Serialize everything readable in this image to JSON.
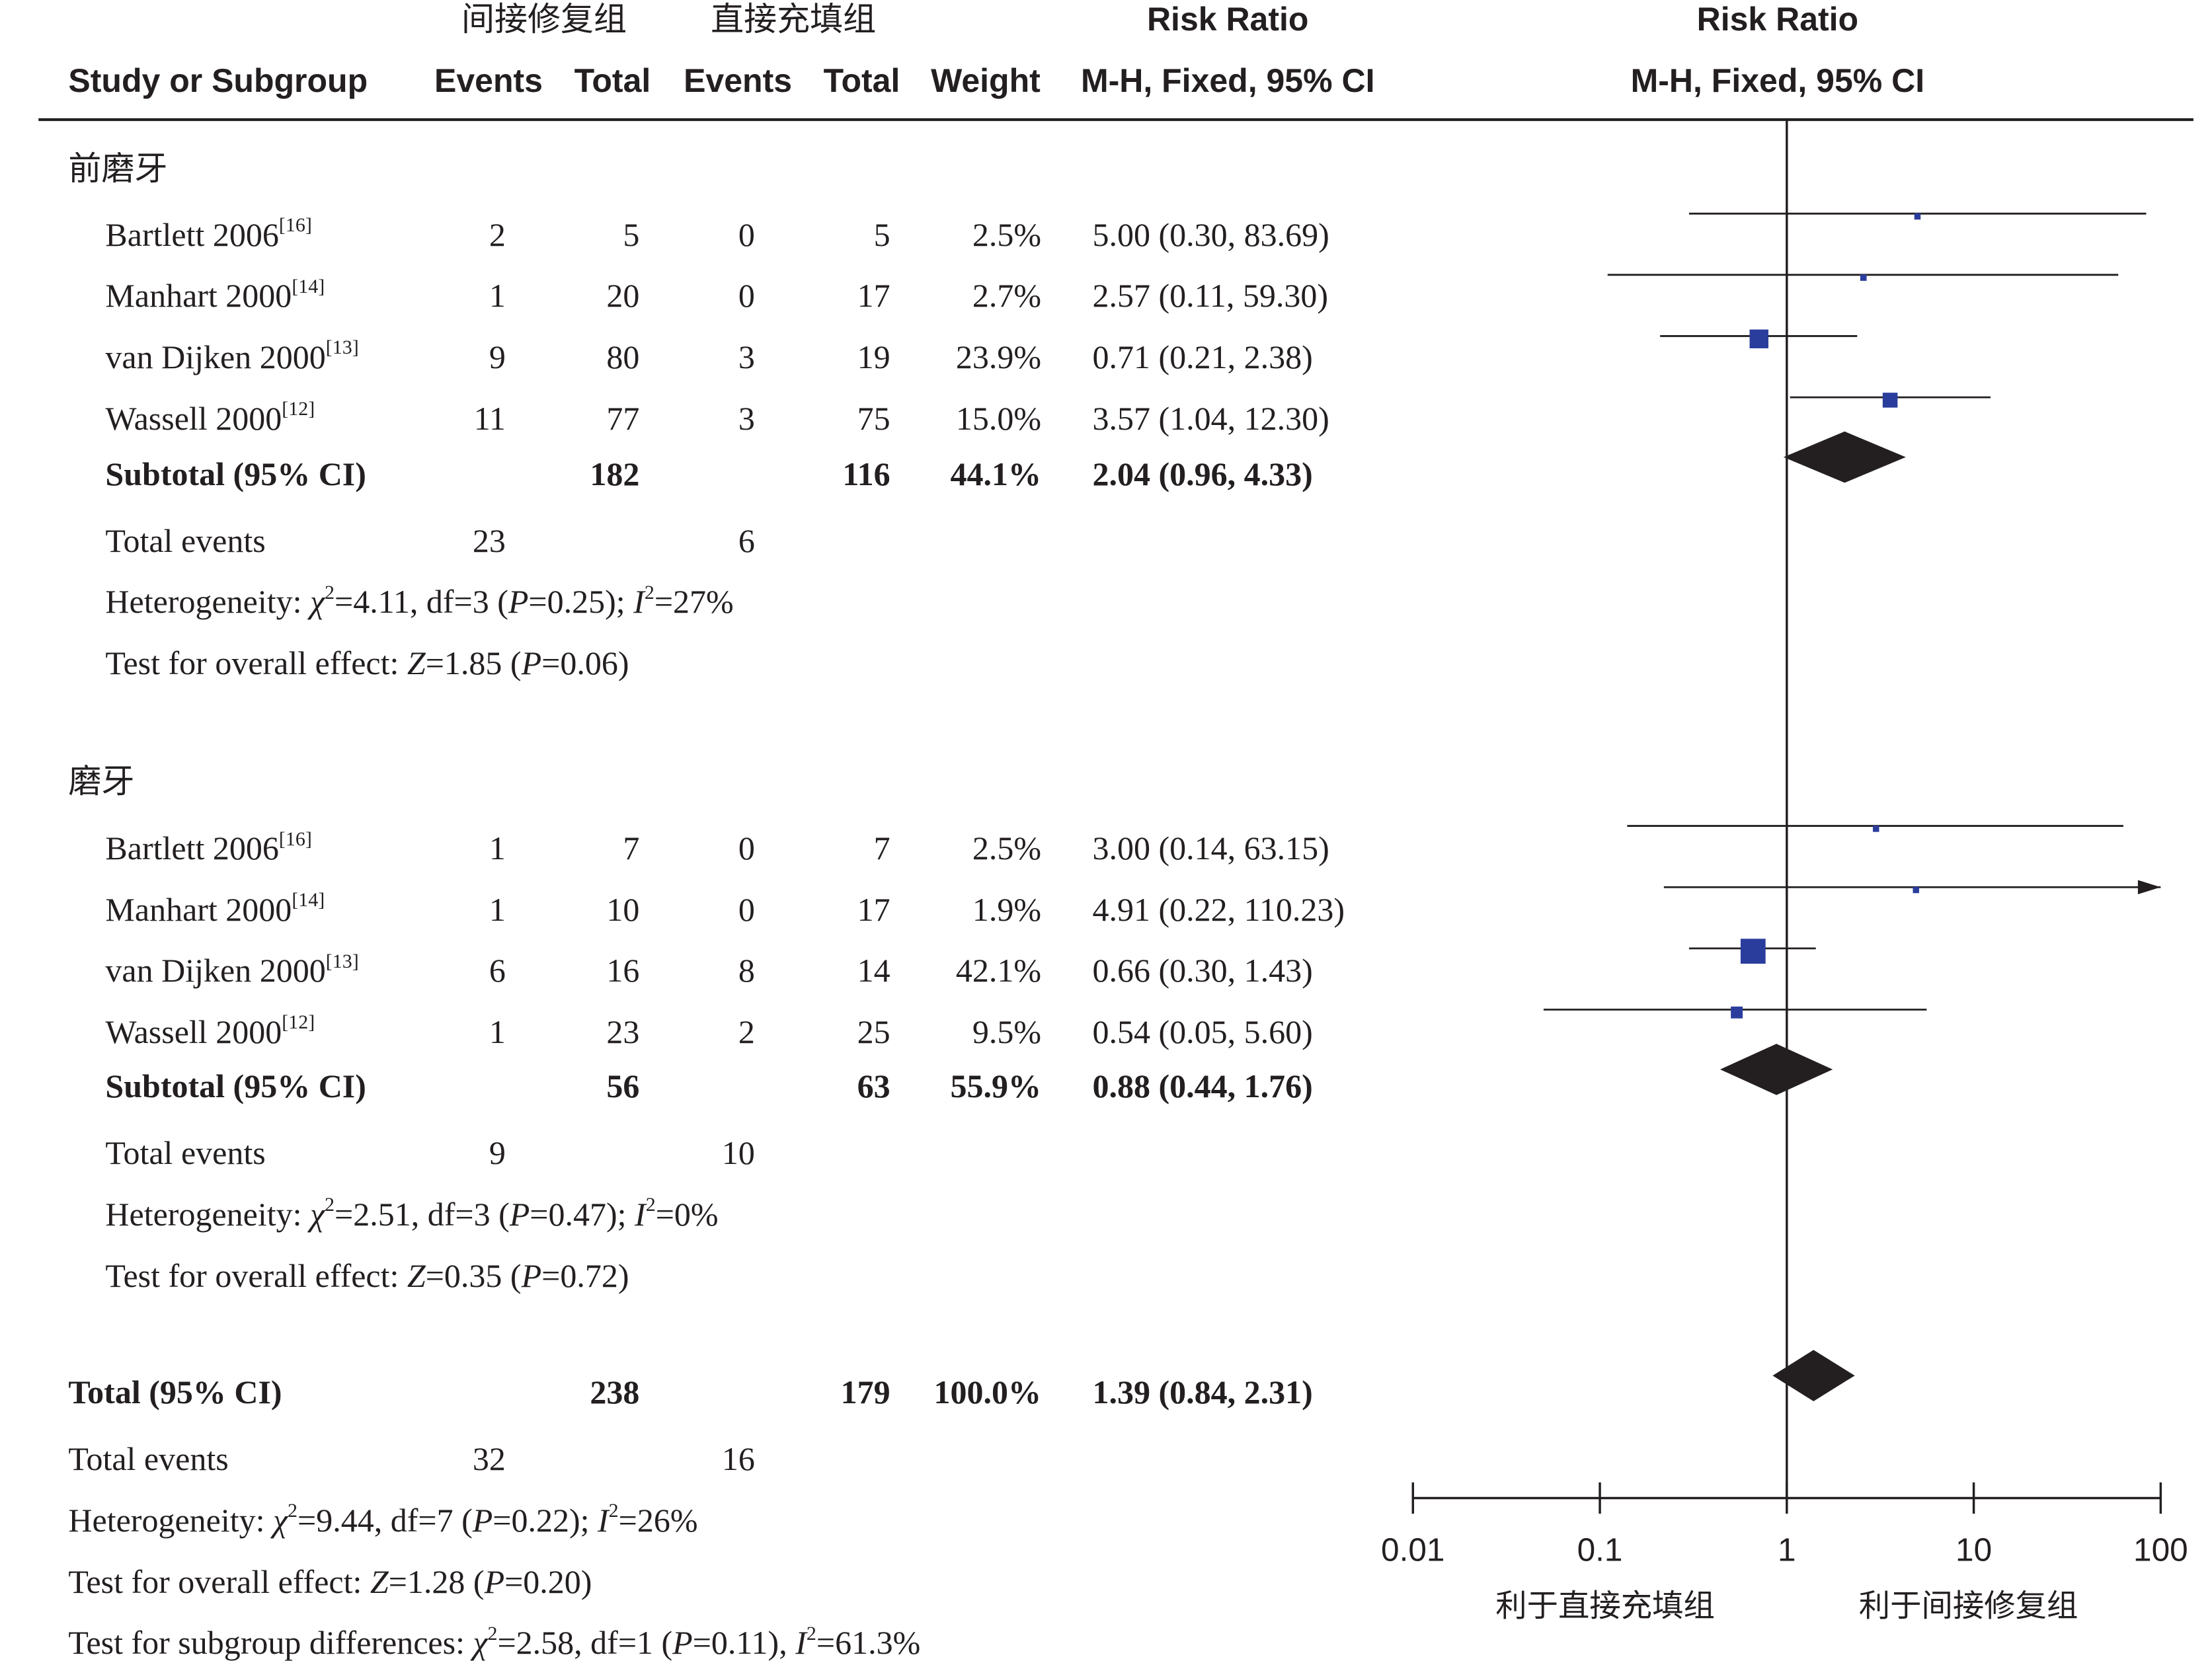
{
  "header": {
    "group1_name": "间接修复组",
    "group2_name": "直接充填组",
    "study_label": "Study or Subgroup",
    "events_label": "Events",
    "total_label": "Total",
    "weight_label": "Weight",
    "rr_title": "Risk Ratio",
    "rr_method": "M-H, Fixed, 95% CI",
    "plot_title": "Risk Ratio",
    "plot_method": "M-H, Fixed, 95% CI"
  },
  "subgroups": [
    {
      "title": "前磨牙",
      "studies": [
        {
          "name": "Bartlett 2006",
          "ref": "[16]",
          "e1": "2",
          "n1": "5",
          "e2": "0",
          "n2": "5",
          "weight": "2.5%",
          "ci": "5.00 (0.30, 83.69)"
        },
        {
          "name": "Manhart 2000",
          "ref": "[14]",
          "e1": "1",
          "n1": "20",
          "e2": "0",
          "n2": "17",
          "weight": "2.7%",
          "ci": "2.57 (0.11, 59.30)"
        },
        {
          "name": "van Dijken 2000",
          "ref": "[13]",
          "e1": "9",
          "n1": "80",
          "e2": "3",
          "n2": "19",
          "weight": "23.9%",
          "ci": "0.71 (0.21, 2.38)"
        },
        {
          "name": "Wassell 2000",
          "ref": "[12]",
          "e1": "11",
          "n1": "77",
          "e2": "3",
          "n2": "75",
          "weight": "15.0%",
          "ci": "3.57 (1.04, 12.30)"
        }
      ],
      "subtotal": {
        "label": "Subtotal (95% CI)",
        "n1": "182",
        "n2": "116",
        "weight": "44.1%",
        "ci": "2.04 (0.96, 4.33)"
      },
      "total_events": {
        "label": "Total events",
        "e1": "23",
        "e2": "6"
      },
      "heterogeneity": {
        "prefix": "Heterogeneity: ",
        "chi_val": "=4.11, df=3 (",
        "p_val": "=0.25); ",
        "i2_val": "=27%"
      },
      "overall": {
        "prefix": "Test for overall effect: ",
        "z_val": "=1.85 (",
        "p_val": "=0.06)"
      }
    },
    {
      "title": "磨牙",
      "studies": [
        {
          "name": "Bartlett 2006",
          "ref": "[16]",
          "e1": "1",
          "n1": "7",
          "e2": "0",
          "n2": "7",
          "weight": "2.5%",
          "ci": "3.00 (0.14, 63.15)"
        },
        {
          "name": "Manhart 2000",
          "ref": "[14]",
          "e1": "1",
          "n1": "10",
          "e2": "0",
          "n2": "17",
          "weight": "1.9%",
          "ci": "4.91 (0.22, 110.23)"
        },
        {
          "name": "van Dijken 2000",
          "ref": "[13]",
          "e1": "6",
          "n1": "16",
          "e2": "8",
          "n2": "14",
          "weight": "42.1%",
          "ci": "0.66 (0.30, 1.43)"
        },
        {
          "name": "Wassell 2000",
          "ref": "[12]",
          "e1": "1",
          "n1": "23",
          "e2": "2",
          "n2": "25",
          "weight": "9.5%",
          "ci": "0.54 (0.05, 5.60)"
        }
      ],
      "subtotal": {
        "label": "Subtotal (95% CI)",
        "n1": "56",
        "n2": "63",
        "weight": "55.9%",
        "ci": "0.88 (0.44, 1.76)"
      },
      "total_events": {
        "label": "Total events",
        "e1": "9",
        "e2": "10"
      },
      "heterogeneity": {
        "prefix": "Heterogeneity: ",
        "chi_val": "=2.51, df=3 (",
        "p_val": "=0.47); ",
        "i2_val": "=0%"
      },
      "overall": {
        "prefix": "Test for overall effect: ",
        "z_val": "=0.35 (",
        "p_val": "=0.72)"
      }
    }
  ],
  "total": {
    "label": "Total (95% CI)",
    "n1": "238",
    "n2": "179",
    "weight": "100.0%",
    "ci": "1.39 (0.84, 2.31)",
    "events_label": "Total events",
    "e1": "32",
    "e2": "16",
    "heterogeneity": {
      "prefix": "Heterogeneity: ",
      "chi_val": "=9.44, df=7 (",
      "p_val": "=0.22); ",
      "i2_val": "=26%"
    },
    "overall": {
      "prefix": "Test for overall effect: ",
      "z_val": "=1.28 (",
      "p_val": "=0.20)"
    },
    "subgroup_diff": {
      "prefix": "Test for subgroup differences: ",
      "chi_val": "=2.58, df=1 (",
      "p_val": "=0.11), ",
      "i2_val": "=61.3%"
    }
  },
  "symbols": {
    "chi": "χ",
    "sq": "2",
    "p": "P",
    "i": "I",
    "z": "Z"
  },
  "axis": {
    "ticks": [
      "0.01",
      "0.1",
      "1",
      "10",
      "100"
    ],
    "favours_left": "利于直接充填组",
    "favours_right": "利于间接修复组"
  },
  "colors": {
    "square": "#2b3d9c",
    "diamond": "#231f20",
    "line": "#231f20"
  },
  "chart_data": {
    "type": "forest",
    "scale": "log",
    "xlim": [
      0.01,
      100
    ],
    "ticks": [
      0.01,
      0.1,
      1,
      10,
      100
    ],
    "null_line": 1,
    "studies": [
      {
        "subgroup": "前磨牙",
        "name": "Bartlett 2006",
        "rr": 5.0,
        "lo": 0.3,
        "hi": 83.69,
        "weight": 2.5
      },
      {
        "subgroup": "前磨牙",
        "name": "Manhart 2000",
        "rr": 2.57,
        "lo": 0.11,
        "hi": 59.3,
        "weight": 2.7
      },
      {
        "subgroup": "前磨牙",
        "name": "van Dijken 2000",
        "rr": 0.71,
        "lo": 0.21,
        "hi": 2.38,
        "weight": 23.9
      },
      {
        "subgroup": "前磨牙",
        "name": "Wassell 2000",
        "rr": 3.57,
        "lo": 1.04,
        "hi": 12.3,
        "weight": 15.0
      },
      {
        "subgroup": "磨牙",
        "name": "Bartlett 2006",
        "rr": 3.0,
        "lo": 0.14,
        "hi": 63.15,
        "weight": 2.5
      },
      {
        "subgroup": "磨牙",
        "name": "Manhart 2000",
        "rr": 4.91,
        "lo": 0.22,
        "hi": 110.23,
        "weight": 1.9
      },
      {
        "subgroup": "磨牙",
        "name": "van Dijken 2000",
        "rr": 0.66,
        "lo": 0.3,
        "hi": 1.43,
        "weight": 42.1
      },
      {
        "subgroup": "磨牙",
        "name": "Wassell 2000",
        "rr": 0.54,
        "lo": 0.05,
        "hi": 5.6,
        "weight": 9.5
      }
    ],
    "summaries": [
      {
        "name": "前磨牙 Subtotal",
        "rr": 2.04,
        "lo": 0.96,
        "hi": 4.33
      },
      {
        "name": "磨牙 Subtotal",
        "rr": 0.88,
        "lo": 0.44,
        "hi": 1.76
      },
      {
        "name": "Total",
        "rr": 1.39,
        "lo": 0.84,
        "hi": 2.31
      }
    ]
  }
}
